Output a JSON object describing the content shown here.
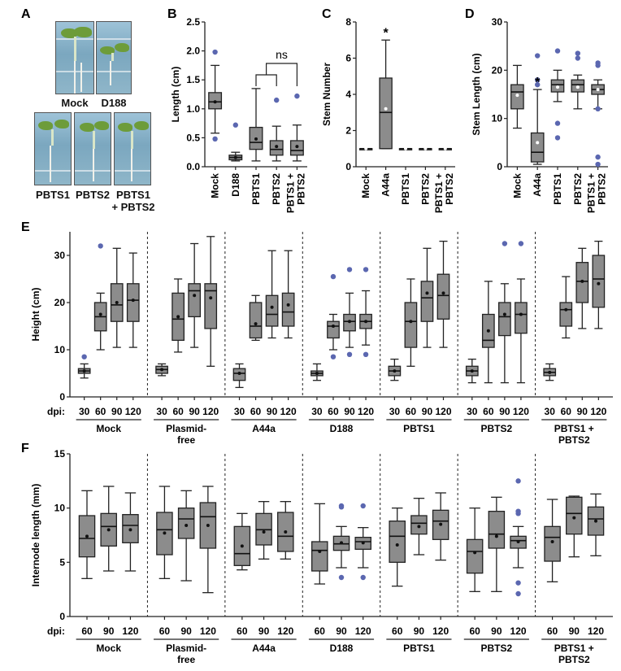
{
  "panel_labels": {
    "A": "A",
    "B": "B",
    "C": "C",
    "D": "D",
    "E": "E",
    "F": "F"
  },
  "panel_a": {
    "labels": [
      "Mock",
      "D188",
      "PBTS1",
      "PBTS2",
      "PBTS1",
      "+ PBTS2"
    ]
  },
  "colors": {
    "box": "#8c8c8c",
    "outlier": "#5b67b0",
    "mean_marker_dark": "#111111",
    "mean_marker_light": "#ffffff"
  },
  "chart_data": [
    {
      "panel": "B",
      "type": "box",
      "ylabel": "Length (cm)",
      "ylim": [
        0,
        2.5
      ],
      "yticks": [
        "0.0",
        "0.5",
        "1.0",
        "1.5",
        "2.0",
        "2.5"
      ],
      "categories": [
        "Mock",
        "D188",
        "PBTS1",
        "PBTS2",
        "PBTS1 + PBTS2"
      ],
      "boxes": [
        {
          "min": 0.58,
          "q1": 1.0,
          "median": 1.12,
          "q3": 1.28,
          "max": 1.75,
          "mean": 1.12,
          "outliers": [
            1.98,
            0.48
          ]
        },
        {
          "min": 0.1,
          "q1": 0.12,
          "median": 0.16,
          "q3": 0.2,
          "max": 0.25,
          "mean": 0.16,
          "outliers": [
            0.72
          ]
        },
        {
          "min": 0.1,
          "q1": 0.3,
          "median": 0.42,
          "q3": 0.68,
          "max": 1.35,
          "mean": 0.48,
          "outliers": []
        },
        {
          "min": 0.1,
          "q1": 0.2,
          "median": 0.3,
          "q3": 0.45,
          "max": 0.7,
          "mean": 0.35,
          "outliers": [
            1.15
          ]
        },
        {
          "min": 0.1,
          "q1": 0.2,
          "median": 0.28,
          "q3": 0.45,
          "max": 0.72,
          "mean": 0.35,
          "outliers": [
            1.22
          ]
        }
      ],
      "annotations": [
        {
          "text": "ns"
        }
      ]
    },
    {
      "panel": "C",
      "type": "box",
      "ylabel": "Stem Number",
      "ylim": [
        0,
        8
      ],
      "yticks": [
        "0",
        "2",
        "4",
        "6",
        "8"
      ],
      "categories": [
        "Mock",
        "A44a",
        "PBTS1",
        "PBTS2",
        "PBTS1 + PBTS2"
      ],
      "boxes": [
        {
          "min": 1,
          "q1": 1,
          "median": 1,
          "q3": 1,
          "max": 1,
          "mean": 1,
          "outliers": []
        },
        {
          "min": 1,
          "q1": 1,
          "median": 3,
          "q3": 4.9,
          "max": 7,
          "mean": 3.2,
          "outliers": []
        },
        {
          "min": 1,
          "q1": 1,
          "median": 1,
          "q3": 1,
          "max": 1,
          "mean": 1,
          "outliers": []
        },
        {
          "min": 1,
          "q1": 1,
          "median": 1,
          "q3": 1,
          "max": 1,
          "mean": 1,
          "outliers": []
        },
        {
          "min": 1,
          "q1": 1,
          "median": 1,
          "q3": 1,
          "max": 1,
          "mean": 1,
          "outliers": []
        }
      ],
      "annotations": [
        {
          "text": "*"
        }
      ]
    },
    {
      "panel": "D",
      "type": "box",
      "ylabel": "Stem Length (cm)",
      "ylim": [
        0,
        30
      ],
      "yticks": [
        "0",
        "10",
        "20",
        "30"
      ],
      "categories": [
        "Mock",
        "A44a",
        "PBTS1",
        "PBTS2",
        "PBTS1 + PBTS2"
      ],
      "boxes": [
        {
          "min": 8,
          "q1": 12,
          "median": 15.5,
          "q3": 17,
          "max": 21,
          "mean": 14.8,
          "outliers": []
        },
        {
          "min": 0.5,
          "q1": 1,
          "median": 3,
          "q3": 7,
          "max": 16,
          "mean": 5,
          "outliers": [
            23,
            18,
            17
          ]
        },
        {
          "min": 13.5,
          "q1": 15.5,
          "median": 17,
          "q3": 18,
          "max": 20,
          "mean": 16.5,
          "outliers": [
            24,
            9,
            6
          ]
        },
        {
          "min": 12,
          "q1": 15.5,
          "median": 17,
          "q3": 18,
          "max": 19,
          "mean": 16.5,
          "outliers": [
            23.5,
            22.5
          ]
        },
        {
          "min": 12,
          "q1": 15,
          "median": 16,
          "q3": 17,
          "max": 18,
          "mean": 16,
          "outliers": [
            21.5,
            21,
            12,
            2,
            0.5
          ]
        }
      ],
      "annotations": [
        {
          "text": "*"
        }
      ]
    },
    {
      "panel": "E",
      "type": "box",
      "ylabel": "Height (cm)",
      "ylim": [
        0,
        35
      ],
      "yticks": [
        "0",
        "10",
        "20",
        "30"
      ],
      "x_prefix": "dpi:",
      "x_ticks": [
        "30",
        "60",
        "90",
        "120"
      ],
      "groups": [
        "Mock",
        "Plasmid-free",
        "A44a",
        "D188",
        "PBTS1",
        "PBTS2",
        "PBTS1 + PBTS2"
      ],
      "boxes": [
        [
          {
            "min": 4,
            "q1": 5,
            "median": 5.5,
            "q3": 6,
            "max": 7,
            "mean": 5.5,
            "outliers": [
              8.5
            ]
          },
          {
            "min": 10,
            "q1": 14,
            "median": 17,
            "q3": 20,
            "max": 22,
            "mean": 17.5,
            "outliers": [
              32
            ]
          },
          {
            "min": 10.5,
            "q1": 16,
            "median": 19.5,
            "q3": 24,
            "max": 31.5,
            "mean": 20,
            "outliers": []
          },
          {
            "min": 10.5,
            "q1": 16,
            "median": 20.5,
            "q3": 24,
            "max": 30.5,
            "mean": 20.5,
            "outliers": []
          }
        ],
        [
          {
            "min": 4.5,
            "q1": 5,
            "median": 5.8,
            "q3": 6.5,
            "max": 7,
            "mean": 5.8,
            "outliers": []
          },
          {
            "min": 9.5,
            "q1": 12,
            "median": 16.5,
            "q3": 22,
            "max": 25,
            "mean": 17,
            "outliers": []
          },
          {
            "min": 10.5,
            "q1": 17,
            "median": 22.5,
            "q3": 24,
            "max": 32.5,
            "mean": 21.5,
            "outliers": []
          },
          {
            "min": 6.5,
            "q1": 14.5,
            "median": 22.5,
            "q3": 24,
            "max": 34,
            "mean": 21,
            "outliers": []
          }
        ],
        [
          {
            "min": 2,
            "q1": 3.5,
            "median": 5,
            "q3": 6,
            "max": 7,
            "mean": 5,
            "outliers": []
          },
          {
            "min": 12,
            "q1": 12.5,
            "median": 15,
            "q3": 20,
            "max": 21.5,
            "mean": 15.5,
            "outliers": []
          },
          {
            "min": 12.5,
            "q1": 15,
            "median": 17.5,
            "q3": 21.5,
            "max": 31,
            "mean": 19,
            "outliers": []
          },
          {
            "min": 12.5,
            "q1": 15,
            "median": 18,
            "q3": 22,
            "max": 31,
            "mean": 19.5,
            "outliers": []
          }
        ],
        [
          {
            "min": 3.5,
            "q1": 4.5,
            "median": 5,
            "q3": 5.5,
            "max": 7,
            "mean": 5,
            "outliers": []
          },
          {
            "min": 10,
            "q1": 12.5,
            "median": 15,
            "q3": 16,
            "max": 17.5,
            "mean": 15,
            "outliers": [
              25.5,
              8.5
            ]
          },
          {
            "min": 10.5,
            "q1": 14,
            "median": 16,
            "q3": 17.5,
            "max": 22,
            "mean": 16,
            "outliers": [
              27,
              9
            ]
          },
          {
            "min": 11,
            "q1": 14.5,
            "median": 16,
            "q3": 17.5,
            "max": 22.5,
            "mean": 16,
            "outliers": [
              27,
              9
            ]
          }
        ],
        [
          {
            "min": 3.5,
            "q1": 4.5,
            "median": 5.5,
            "q3": 6.5,
            "max": 8,
            "mean": 5.5,
            "outliers": []
          },
          {
            "min": 6.5,
            "q1": 10.5,
            "median": 16,
            "q3": 20,
            "max": 25,
            "mean": 16,
            "outliers": []
          },
          {
            "min": 10.5,
            "q1": 16,
            "median": 21,
            "q3": 24.5,
            "max": 31.5,
            "mean": 22,
            "outliers": []
          },
          {
            "min": 10.5,
            "q1": 16.5,
            "median": 21.5,
            "q3": 26,
            "max": 33,
            "mean": 22,
            "outliers": []
          }
        ],
        [
          {
            "min": 3,
            "q1": 4.5,
            "median": 5.5,
            "q3": 6.5,
            "max": 8,
            "mean": 5.5,
            "outliers": []
          },
          {
            "min": 3,
            "q1": 10.5,
            "median": 12,
            "q3": 17.5,
            "max": 24.5,
            "mean": 14,
            "outliers": []
          },
          {
            "min": 3,
            "q1": 13,
            "median": 17,
            "q3": 20,
            "max": 24,
            "mean": 17.5,
            "outliers": [
              32.5
            ]
          },
          {
            "min": 3,
            "q1": 13.5,
            "median": 17.5,
            "q3": 20,
            "max": 25,
            "mean": 17.5,
            "outliers": [
              32.5
            ]
          }
        ],
        [
          {
            "min": 3.5,
            "q1": 4.5,
            "median": 5.2,
            "q3": 6,
            "max": 7,
            "mean": 5.2,
            "outliers": []
          },
          {
            "min": 12.5,
            "q1": 15,
            "median": 18.5,
            "q3": 20,
            "max": 25.5,
            "mean": 18.5,
            "outliers": []
          },
          {
            "min": 14.5,
            "q1": 20,
            "median": 24.5,
            "q3": 28.5,
            "max": 31.5,
            "mean": 24.5,
            "outliers": []
          },
          {
            "min": 14.5,
            "q1": 19,
            "median": 25,
            "q3": 30,
            "max": 33,
            "mean": 24,
            "outliers": []
          }
        ]
      ]
    },
    {
      "panel": "F",
      "type": "box",
      "ylabel": "Internode length (mm)",
      "ylim": [
        0,
        15
      ],
      "yticks": [
        "0",
        "5",
        "10",
        "15"
      ],
      "x_prefix": "dpi:",
      "x_ticks": [
        "60",
        "90",
        "120"
      ],
      "groups": [
        "Mock",
        "Plasmid-free",
        "A44a",
        "D188",
        "PBTS1",
        "PBTS2",
        "PBTS1 + PBTS2"
      ],
      "boxes": [
        [
          {
            "min": 3.5,
            "q1": 5.5,
            "median": 7.2,
            "q3": 9.3,
            "max": 11.6,
            "mean": 7.4,
            "outliers": []
          },
          {
            "min": 4.2,
            "q1": 6.5,
            "median": 8.3,
            "q3": 9.5,
            "max": 12,
            "mean": 8,
            "outliers": []
          },
          {
            "min": 4.2,
            "q1": 6.8,
            "median": 8.4,
            "q3": 9.4,
            "max": 11.4,
            "mean": 8,
            "outliers": []
          }
        ],
        [
          {
            "min": 3.5,
            "q1": 5.7,
            "median": 8,
            "q3": 9.6,
            "max": 12,
            "mean": 7.7,
            "outliers": []
          },
          {
            "min": 3.3,
            "q1": 7.2,
            "median": 9,
            "q3": 10,
            "max": 11.6,
            "mean": 8.4,
            "outliers": []
          },
          {
            "min": 2.2,
            "q1": 6.3,
            "median": 9.2,
            "q3": 10.5,
            "max": 12,
            "mean": 8.4,
            "outliers": []
          }
        ],
        [
          {
            "min": 4.3,
            "q1": 4.7,
            "median": 5.8,
            "q3": 8.3,
            "max": 9.5,
            "mean": 6.5,
            "outliers": []
          },
          {
            "min": 5.3,
            "q1": 6.6,
            "median": 8,
            "q3": 9.5,
            "max": 10.6,
            "mean": 7.8,
            "outliers": []
          },
          {
            "min": 5.3,
            "q1": 6,
            "median": 7.4,
            "q3": 9.6,
            "max": 10.6,
            "mean": 7.8,
            "outliers": []
          }
        ],
        [
          {
            "min": 3,
            "q1": 4.2,
            "median": 6.1,
            "q3": 6.9,
            "max": 10.4,
            "mean": 6,
            "outliers": []
          },
          {
            "min": 4.5,
            "q1": 6.1,
            "median": 6.7,
            "q3": 7.4,
            "max": 8.3,
            "mean": 6.8,
            "outliers": [
              10.2,
              10.1,
              3.6
            ]
          },
          {
            "min": 4.5,
            "q1": 6.2,
            "median": 6.9,
            "q3": 7.3,
            "max": 8.2,
            "mean": 6.8,
            "outliers": [
              10.2,
              3.6
            ]
          }
        ],
        [
          {
            "min": 2.8,
            "q1": 5,
            "median": 7.4,
            "q3": 8.8,
            "max": 10,
            "mean": 6.6,
            "outliers": []
          },
          {
            "min": 5.7,
            "q1": 7.6,
            "median": 8.6,
            "q3": 9.3,
            "max": 10.9,
            "mean": 8.3,
            "outliers": []
          },
          {
            "min": 5.2,
            "q1": 7.1,
            "median": 8.8,
            "q3": 9.8,
            "max": 11.4,
            "mean": 8.5,
            "outliers": []
          }
        ],
        [
          {
            "min": 2.3,
            "q1": 4,
            "median": 6,
            "q3": 7.1,
            "max": 10,
            "mean": 5.9,
            "outliers": []
          },
          {
            "min": 2.3,
            "q1": 6.3,
            "median": 7.6,
            "q3": 9.7,
            "max": 11,
            "mean": 7.4,
            "outliers": []
          },
          {
            "min": 4.5,
            "q1": 6.3,
            "median": 7,
            "q3": 7.4,
            "max": 8.3,
            "mean": 6.9,
            "outliers": [
              12.5,
              9.7,
              9.5,
              3.1,
              2.1
            ]
          }
        ],
        [
          {
            "min": 3.2,
            "q1": 5.1,
            "median": 7.3,
            "q3": 8.3,
            "max": 10.8,
            "mean": 6.9,
            "outliers": []
          },
          {
            "min": 5.5,
            "q1": 7.6,
            "median": 9.5,
            "q3": 11,
            "max": 11.1,
            "mean": 9.1,
            "outliers": []
          },
          {
            "min": 5.6,
            "q1": 7.5,
            "median": 9,
            "q3": 10.1,
            "max": 11.3,
            "mean": 8.8,
            "outliers": []
          }
        ]
      ]
    }
  ]
}
